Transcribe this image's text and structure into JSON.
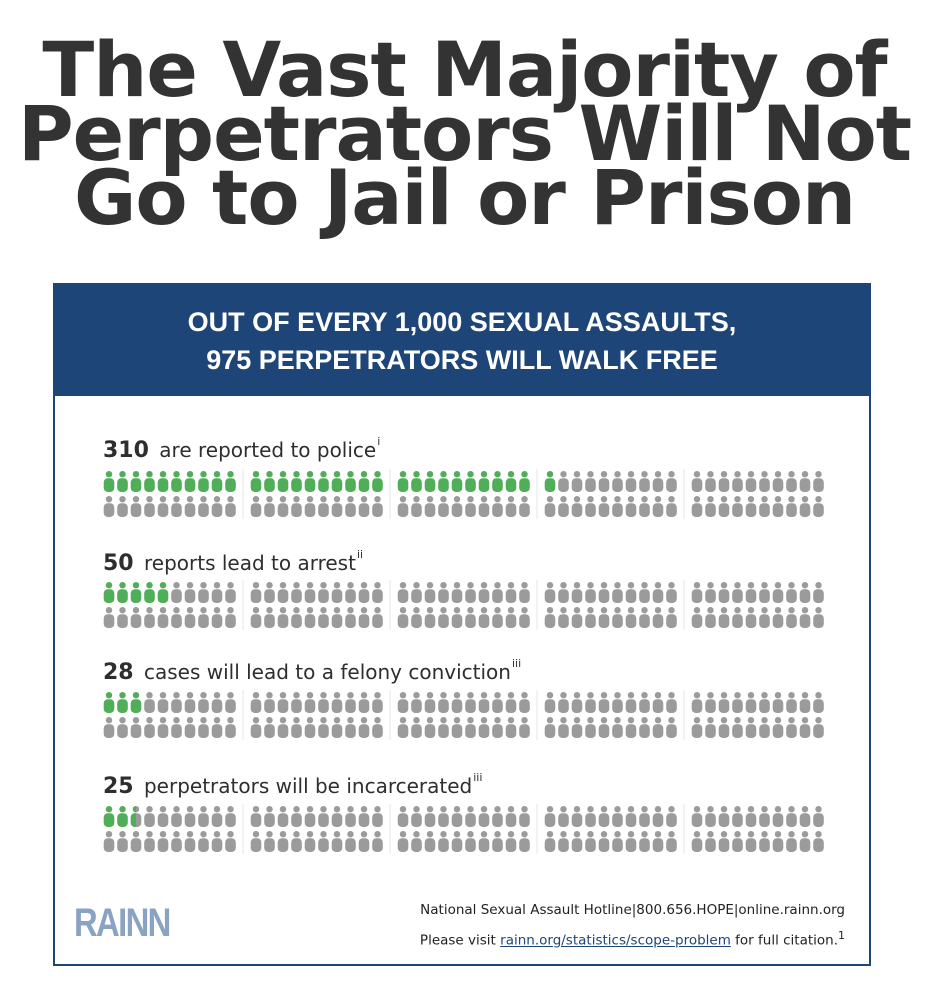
{
  "headline": {
    "lines": [
      "The Vast Majority of",
      "Perpetrators Will Not",
      "Go to Jail or Prison"
    ]
  },
  "banner": {
    "line1": "OUT OF EVERY 1,000 SEXUAL ASSAULTS,",
    "line2": "975 PERPETRATORS WILL WALK FREE"
  },
  "colors": {
    "highlight_green": "#4fae57",
    "figure_gray": "#9b9b9b",
    "banner_blue": "#1e4577",
    "logo_blue": "#8ba3c2"
  },
  "icon_name": "person-icon",
  "total_per_row": 100,
  "rows": [
    {
      "number": "310",
      "text": "are reported to police",
      "note": "i",
      "highlighted_figures": 31
    },
    {
      "number": "50",
      "text": "reports lead to arrest",
      "note": "ii",
      "highlighted_figures": 5
    },
    {
      "number": "28",
      "text": "cases will lead to a felony conviction",
      "note": "iii",
      "highlighted_figures": 3
    },
    {
      "number": "25",
      "text": "perpetrators will be incarcerated",
      "note": "iii",
      "highlighted_figures": 2.5
    }
  ],
  "footer": {
    "hotline": "National Sexual Assault Hotline|800.656.HOPE|online.rainn.org",
    "visit_prefix": "Please visit ",
    "visit_link": "rainn.org/statistics/scope-problem",
    "visit_suffix": " for full citation.",
    "visit_sup": "1"
  },
  "logo": {
    "text": "RAINN"
  }
}
